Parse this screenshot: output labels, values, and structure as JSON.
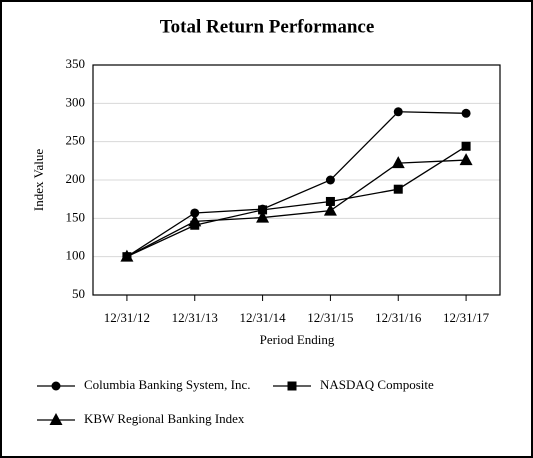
{
  "chart_data": {
    "type": "line",
    "title": "Total Return Performance",
    "x_label": "Period Ending",
    "y_label": "Index Value",
    "categories": [
      "12/31/12",
      "12/31/13",
      "12/31/14",
      "12/31/15",
      "12/31/16",
      "12/31/17"
    ],
    "series": [
      {
        "name": "Columbia Banking System, Inc.",
        "color": "#000000",
        "marker": "circle",
        "values": [
          100,
          157,
          162,
          200,
          289,
          287
        ]
      },
      {
        "name": "NASDAQ Composite",
        "color": "#000000",
        "marker": "square",
        "values": [
          100,
          141,
          161,
          172,
          188,
          244
        ]
      },
      {
        "name": "KBW Regional Banking Index",
        "color": "#000000",
        "marker": "triangle",
        "values": [
          100,
          146,
          151,
          160,
          222,
          226
        ]
      }
    ],
    "ylim": [
      50,
      350
    ],
    "yticks": [
      50,
      100,
      150,
      200,
      250,
      300,
      350
    ],
    "grid": true
  }
}
